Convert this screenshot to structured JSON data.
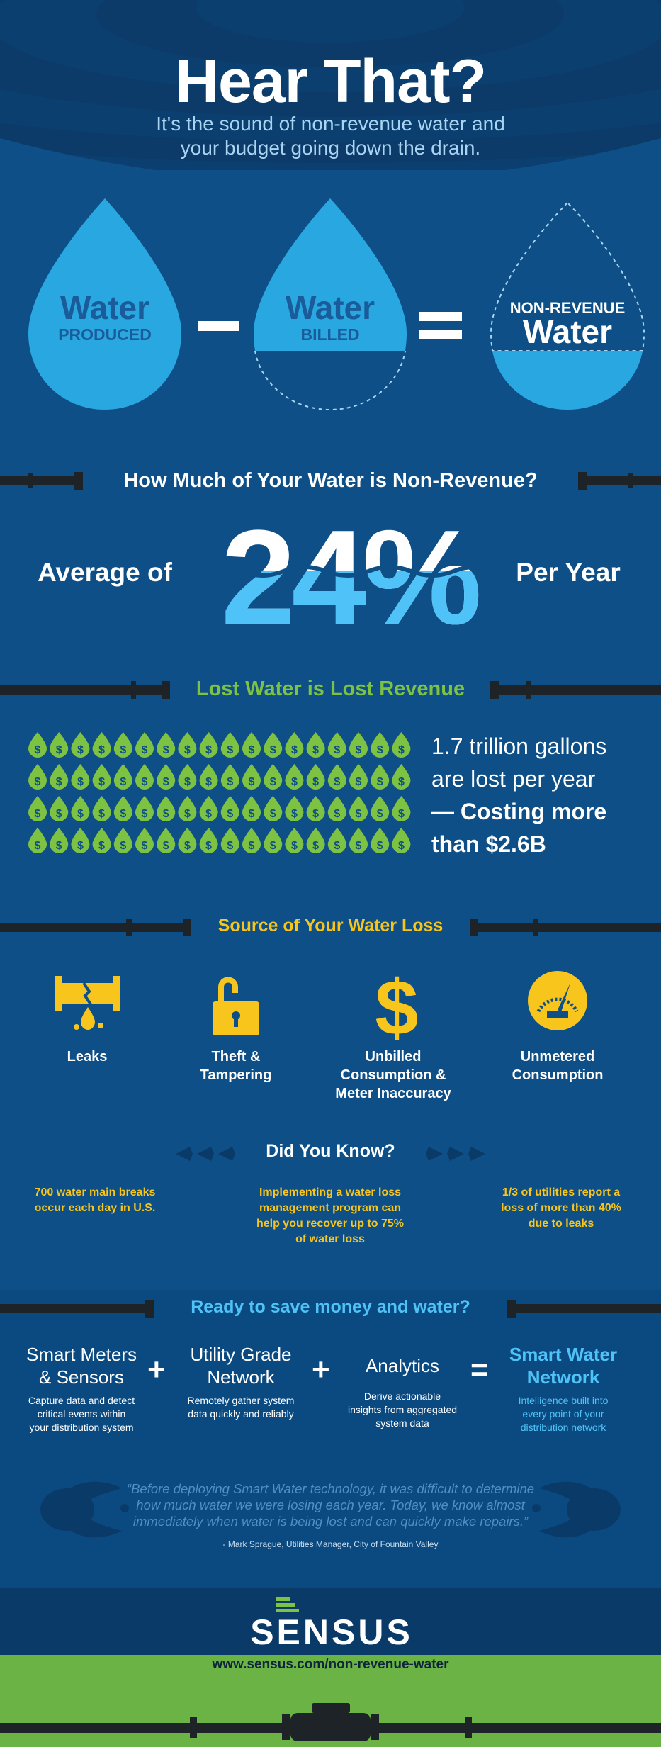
{
  "header": {
    "title": "Hear That?",
    "subtitle_line1": "It's the sound of non-revenue water and",
    "subtitle_line2": "your budget going down the drain."
  },
  "equation1": {
    "drop1_big": "Water",
    "drop1_small": "PRODUCED",
    "minus": "–",
    "drop2_big": "Water",
    "drop2_small": "BILLED",
    "equals": "=",
    "drop3_small": "NON-REVENUE",
    "drop3_big": "Water"
  },
  "section_nonrevenue": {
    "heading": "How Much of Your Water is Non-Revenue?",
    "prefix": "Average of",
    "percent": "24%",
    "percent_value": 24,
    "suffix": "Per Year"
  },
  "section_lost": {
    "heading": "Lost Water is Lost Revenue",
    "drop_symbol": "$",
    "drop_grid": {
      "rows": 4,
      "cols": 18
    },
    "stat_line1": "1.7 trillion gallons",
    "stat_line2": "are lost per year",
    "stat_line3": "— Costing more",
    "stat_line4": "than $2.6B"
  },
  "section_source": {
    "heading": "Source of Your Water Loss",
    "items": [
      {
        "icon": "leak-pipe-icon",
        "line1": "Leaks",
        "line2": "",
        "line3": ""
      },
      {
        "icon": "open-padlock-icon",
        "line1": "Theft &",
        "line2": "Tampering",
        "line3": ""
      },
      {
        "icon": "dollar-sign-icon",
        "line1": "Unbilled",
        "line2": "Consumption &",
        "line3": "Meter Inaccuracy"
      },
      {
        "icon": "meter-gauge-icon",
        "line1": "Unmetered",
        "line2": "Consumption",
        "line3": ""
      }
    ]
  },
  "did_you_know": {
    "heading": "Did You Know?",
    "facts": [
      {
        "line1": "700 water main breaks",
        "line2": "occur each day in U.S.",
        "line3": "",
        "line4": ""
      },
      {
        "line1": "Implementing a water loss",
        "line2": "management program can",
        "line3": "help you recover up to 75%",
        "line4": "of water loss"
      },
      {
        "line1": "1/3 of utilities report a",
        "line2": "loss of more than 40%",
        "line3": "due to leaks",
        "line4": ""
      }
    ]
  },
  "ready": {
    "heading": "Ready to save money and water?",
    "items": [
      {
        "title1": "Smart Meters",
        "title2": "& Sensors",
        "desc1": "Capture data and detect",
        "desc2": "critical events within",
        "desc3": "your distribution system"
      },
      {
        "title1": "Utility Grade",
        "title2": "Network",
        "desc1": "Remotely gather system",
        "desc2": "data quickly and reliably",
        "desc3": ""
      },
      {
        "title1": "Analytics",
        "title2": "",
        "desc1": "Derive actionable",
        "desc2": "insights from aggregated",
        "desc3": "system data"
      }
    ],
    "plus": "+",
    "equals": "=",
    "result": {
      "title1": "Smart Water",
      "title2": "Network",
      "desc1": "Intelligence built into",
      "desc2": "every point of your",
      "desc3": "distribution network"
    }
  },
  "quote": {
    "line1": "“Before deploying Smart Water technology, it was difficult to determine",
    "line2": "how much water we were losing each year. Today, we know almost",
    "line3": "immediately when water is being lost and can quickly make repairs.”",
    "attribution": "- Mark Sprague, Utilities Manager, City of Fountain Valley"
  },
  "footer": {
    "brand": "SENSUS",
    "url": "www.sensus.com/non-revenue-water"
  },
  "colors": {
    "background": "#0d4f86",
    "dark_band": "#0a3f70",
    "light_blue": "#3bb3e8",
    "drop_blue": "#29a7e1",
    "deep_blue_text": "#1a5b9a",
    "green": "#7dc242",
    "footer_green": "#6ab344",
    "yellow": "#f7c51c",
    "cyan_text": "#4fc3f7",
    "pipe": "#1e2328"
  }
}
